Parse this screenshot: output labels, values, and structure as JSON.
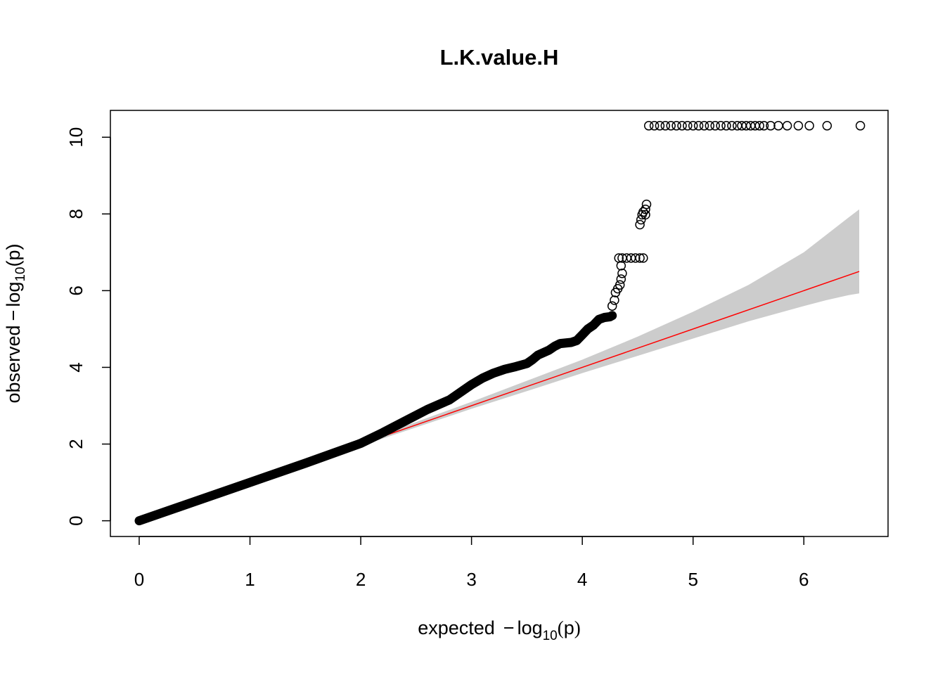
{
  "chart_data": {
    "type": "scatter",
    "title": "L.K.value.H",
    "xlabel": {
      "prefix": "expected",
      "minus": "−",
      "log": "log",
      "base": "10",
      "open": "(",
      "var": "p",
      "close": ")"
    },
    "ylabel": {
      "prefix": "observed",
      "minus": "−",
      "log": "log",
      "base": "10",
      "open": "(",
      "var": "p",
      "close": ")"
    },
    "xlim": [
      -0.26,
      6.76
    ],
    "ylim": [
      -0.41,
      10.7
    ],
    "x_ticks": [
      0,
      1,
      2,
      3,
      4,
      5,
      6
    ],
    "y_ticks": [
      0,
      2,
      4,
      6,
      8,
      10
    ],
    "grid": false,
    "reference_line": {
      "from": [
        0,
        0
      ],
      "to": [
        6.5,
        6.5
      ],
      "color": "#ff0000"
    },
    "confidence_band": {
      "color": "#cccccc",
      "x": [
        2.0,
        3.0,
        3.5,
        4.0,
        4.5,
        5.0,
        5.5,
        6.0,
        6.2,
        6.4,
        6.5
      ],
      "upper": [
        2.05,
        3.1,
        3.65,
        4.2,
        4.8,
        5.45,
        6.15,
        7.0,
        7.45,
        7.9,
        8.12
      ],
      "lower": [
        1.95,
        2.92,
        3.38,
        3.85,
        4.3,
        4.75,
        5.2,
        5.6,
        5.75,
        5.88,
        5.93
      ]
    },
    "curve": {
      "x": [
        0.0,
        0.5,
        1.0,
        1.5,
        2.0,
        2.2,
        2.4,
        2.6,
        2.8,
        2.9,
        3.0,
        3.1,
        3.2,
        3.3,
        3.4,
        3.5,
        3.55,
        3.6,
        3.7,
        3.75,
        3.8,
        3.9,
        3.95,
        4.0,
        4.05,
        4.1,
        4.15,
        4.2,
        4.25,
        4.27
      ],
      "y": [
        0.0,
        0.5,
        1.0,
        1.5,
        2.02,
        2.3,
        2.6,
        2.9,
        3.15,
        3.35,
        3.55,
        3.72,
        3.85,
        3.95,
        4.02,
        4.1,
        4.2,
        4.32,
        4.45,
        4.55,
        4.62,
        4.65,
        4.7,
        4.85,
        5.0,
        5.1,
        5.25,
        5.3,
        5.32,
        5.35
      ]
    },
    "points": [
      {
        "x": 4.27,
        "y": 5.6
      },
      {
        "x": 4.29,
        "y": 5.75
      },
      {
        "x": 4.3,
        "y": 5.95
      },
      {
        "x": 4.32,
        "y": 6.05
      },
      {
        "x": 4.34,
        "y": 6.15
      },
      {
        "x": 4.35,
        "y": 6.3
      },
      {
        "x": 4.36,
        "y": 6.45
      },
      {
        "x": 4.35,
        "y": 6.65
      },
      {
        "x": 4.33,
        "y": 6.85
      },
      {
        "x": 4.36,
        "y": 6.85
      },
      {
        "x": 4.4,
        "y": 6.85
      },
      {
        "x": 4.44,
        "y": 6.85
      },
      {
        "x": 4.48,
        "y": 6.85
      },
      {
        "x": 4.52,
        "y": 6.85
      },
      {
        "x": 4.55,
        "y": 6.85
      },
      {
        "x": 4.52,
        "y": 7.72
      },
      {
        "x": 4.53,
        "y": 7.85
      },
      {
        "x": 4.54,
        "y": 7.98
      },
      {
        "x": 4.55,
        "y": 8.05
      },
      {
        "x": 4.57,
        "y": 7.98
      },
      {
        "x": 4.57,
        "y": 8.12
      },
      {
        "x": 4.58,
        "y": 8.25
      },
      {
        "x": 4.6,
        "y": 10.3
      },
      {
        "x": 4.65,
        "y": 10.3
      },
      {
        "x": 4.7,
        "y": 10.3
      },
      {
        "x": 4.75,
        "y": 10.3
      },
      {
        "x": 4.8,
        "y": 10.3
      },
      {
        "x": 4.85,
        "y": 10.3
      },
      {
        "x": 4.9,
        "y": 10.3
      },
      {
        "x": 4.95,
        "y": 10.3
      },
      {
        "x": 5.0,
        "y": 10.3
      },
      {
        "x": 5.05,
        "y": 10.3
      },
      {
        "x": 5.1,
        "y": 10.3
      },
      {
        "x": 5.15,
        "y": 10.3
      },
      {
        "x": 5.2,
        "y": 10.3
      },
      {
        "x": 5.25,
        "y": 10.3
      },
      {
        "x": 5.3,
        "y": 10.3
      },
      {
        "x": 5.35,
        "y": 10.3
      },
      {
        "x": 5.4,
        "y": 10.3
      },
      {
        "x": 5.44,
        "y": 10.3
      },
      {
        "x": 5.48,
        "y": 10.3
      },
      {
        "x": 5.52,
        "y": 10.3
      },
      {
        "x": 5.56,
        "y": 10.3
      },
      {
        "x": 5.6,
        "y": 10.3
      },
      {
        "x": 5.64,
        "y": 10.3
      },
      {
        "x": 5.7,
        "y": 10.3
      },
      {
        "x": 5.77,
        "y": 10.3
      },
      {
        "x": 5.85,
        "y": 10.3
      },
      {
        "x": 5.95,
        "y": 10.3
      },
      {
        "x": 6.05,
        "y": 10.3
      },
      {
        "x": 6.21,
        "y": 10.3
      },
      {
        "x": 6.51,
        "y": 10.3
      }
    ]
  }
}
